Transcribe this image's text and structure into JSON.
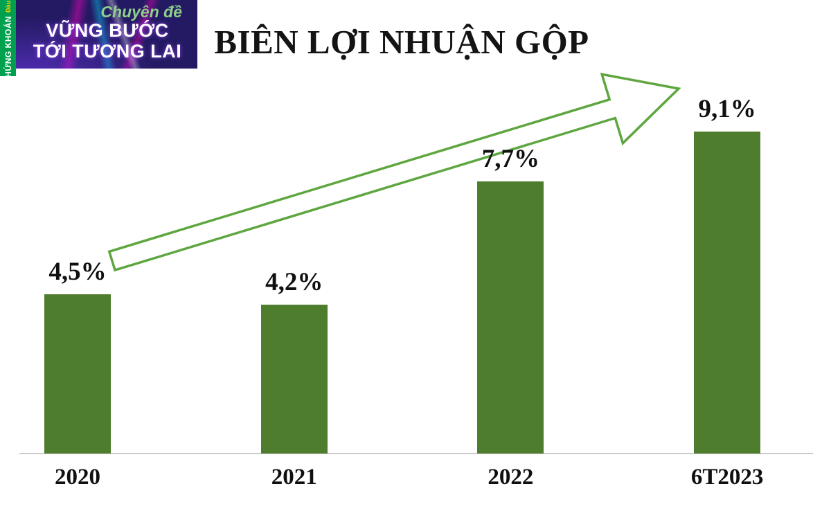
{
  "logo": {
    "strip_small": "Đầu tư",
    "strip_large": "CHỨNG KHOÁN",
    "tagline": "Chuyên đề",
    "line1": "VỮNG BƯỚC",
    "line2": "TỚI TƯƠNG LAI"
  },
  "chart_data": {
    "type": "bar",
    "title": "BIÊN LỢI NHUẬN GỘP",
    "categories": [
      "2020",
      "2021",
      "2022",
      "6T2023"
    ],
    "values": [
      4.5,
      4.2,
      7.7,
      9.1
    ],
    "labels": [
      "4,5%",
      "4,2%",
      "7,7%",
      "9,1%"
    ],
    "xlabel": "",
    "ylabel": "",
    "ylim": [
      0,
      10
    ],
    "grid": false,
    "bar_color": "#4e7d2d",
    "arrow_color": "#5ea63f",
    "axis_color": "#cbcbcb",
    "annotation": "upward trend arrow from 2020 toward 9,1%"
  }
}
